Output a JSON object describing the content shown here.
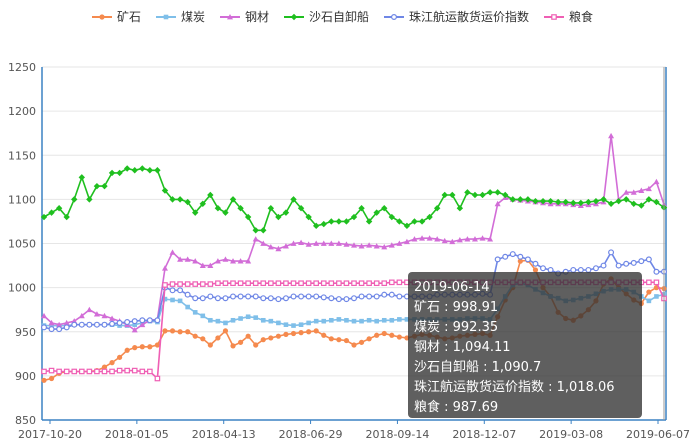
{
  "chart_data": {
    "type": "line",
    "title": "",
    "xlabel": "",
    "ylabel": "",
    "ylim": [
      850,
      1250
    ],
    "yticks": [
      850,
      900,
      950,
      1000,
      1050,
      1100,
      1150,
      1200,
      1250
    ],
    "x_tick_labels": [
      "2017-10-20",
      "2018-01-05",
      "2018-04-13",
      "2018-06-29",
      "2018-09-14",
      "2018-12-07",
      "2019-03-08",
      "2019-06-07"
    ],
    "legend": {
      "position": "top"
    },
    "grid": {
      "horizontal": true,
      "vertical": false
    },
    "series": [
      {
        "name": "矿石",
        "color": "#f58a4e",
        "marker": "circle",
        "values": [
          895,
          897,
          903,
          905,
          905,
          905,
          905,
          906,
          910,
          915,
          921,
          929,
          932,
          933,
          933,
          935,
          951,
          951,
          950,
          950,
          945,
          942,
          935,
          943,
          951,
          934,
          938,
          945,
          935,
          941,
          943,
          945,
          947,
          948,
          949,
          950,
          951,
          946,
          942,
          941,
          940,
          935,
          938,
          942,
          946,
          948,
          946,
          944,
          943,
          945,
          947,
          946,
          944,
          942,
          943,
          945,
          946,
          947,
          948,
          946,
          967,
          986,
          1000,
          1030,
          1031,
          1020,
          1000,
          990,
          972,
          965,
          963,
          968,
          975,
          985,
          1004,
          1010,
          1000,
          993,
          986,
          982,
          995,
          1000,
          998.91
        ]
      },
      {
        "name": "煤炭",
        "color": "#7fbfe9",
        "marker": "square",
        "values": [
          957,
          957,
          957,
          957,
          958,
          958,
          958,
          958,
          958,
          958,
          957,
          957,
          958,
          960,
          962,
          961,
          987,
          986,
          985,
          978,
          972,
          968,
          963,
          962,
          960,
          963,
          965,
          967,
          966,
          963,
          962,
          960,
          958,
          957,
          958,
          960,
          962,
          962,
          963,
          964,
          963,
          962,
          962,
          963,
          962,
          963,
          963,
          964,
          964,
          964,
          964,
          964,
          964,
          964,
          964,
          964,
          965,
          965,
          965,
          964,
          976,
          990,
          1003,
          1005,
          1003,
          998,
          994,
          990,
          988,
          985,
          986,
          988,
          990,
          993,
          996,
          998,
          998,
          998,
          995,
          990,
          985,
          990,
          992.35
        ]
      },
      {
        "name": "钢材",
        "color": "#d26dd7",
        "marker": "triangle",
        "values": [
          968,
          960,
          958,
          960,
          962,
          968,
          975,
          970,
          968,
          965,
          962,
          958,
          952,
          958,
          963,
          964,
          1022,
          1040,
          1032,
          1032,
          1030,
          1025,
          1025,
          1030,
          1032,
          1030,
          1030,
          1030,
          1055,
          1050,
          1046,
          1044,
          1047,
          1050,
          1051,
          1049,
          1050,
          1050,
          1050,
          1050,
          1049,
          1048,
          1047,
          1048,
          1047,
          1046,
          1048,
          1050,
          1052,
          1055,
          1056,
          1056,
          1055,
          1053,
          1052,
          1054,
          1055,
          1055,
          1056,
          1055,
          1095,
          1102,
          1100,
          1099,
          1098,
          1097,
          1096,
          1095,
          1095,
          1095,
          1094,
          1093,
          1094,
          1095,
          1097,
          1172,
          1100,
          1108,
          1108,
          1110,
          1112,
          1120,
          1094.11
        ]
      },
      {
        "name": "沙石自卸船",
        "color": "#1fbf1f",
        "marker": "diamond",
        "values": [
          1080,
          1085,
          1090,
          1080,
          1100,
          1125,
          1100,
          1115,
          1115,
          1130,
          1130,
          1135,
          1133,
          1135,
          1133,
          1133,
          1110,
          1100,
          1100,
          1097,
          1085,
          1095,
          1105,
          1090,
          1085,
          1100,
          1090,
          1080,
          1065,
          1065,
          1090,
          1080,
          1085,
          1100,
          1090,
          1080,
          1070,
          1072,
          1075,
          1075,
          1075,
          1080,
          1090,
          1075,
          1085,
          1090,
          1080,
          1075,
          1070,
          1075,
          1075,
          1080,
          1090,
          1105,
          1105,
          1090,
          1108,
          1105,
          1105,
          1108,
          1108,
          1105,
          1100,
          1100,
          1100,
          1098,
          1098,
          1098,
          1097,
          1097,
          1096,
          1096,
          1097,
          1098,
          1100,
          1095,
          1098,
          1100,
          1095,
          1093,
          1100,
          1097,
          1090.7
        ]
      },
      {
        "name": "珠江航运散货运价指数",
        "color": "#6f87e6",
        "marker": "ring",
        "values": [
          955,
          953,
          953,
          955,
          958,
          958,
          958,
          958,
          958,
          959,
          960,
          961,
          962,
          963,
          963,
          963,
          1000,
          997,
          997,
          992,
          988,
          988,
          990,
          988,
          988,
          990,
          990,
          990,
          990,
          988,
          988,
          987,
          988,
          990,
          990,
          990,
          990,
          989,
          988,
          987,
          987,
          988,
          990,
          990,
          990,
          992,
          992,
          990,
          990,
          990,
          990,
          990,
          992,
          992,
          992,
          992,
          992,
          992,
          993,
          992,
          1032,
          1035,
          1038,
          1035,
          1032,
          1027,
          1022,
          1020,
          1016,
          1018,
          1020,
          1020,
          1020,
          1022,
          1025,
          1040,
          1025,
          1027,
          1028,
          1030,
          1032,
          1018,
          1018.06
        ]
      },
      {
        "name": "粮食",
        "color": "#ef5fb4",
        "marker": "square-outline",
        "values": [
          905,
          906,
          905,
          905,
          905,
          905,
          905,
          905,
          905,
          905,
          906,
          906,
          906,
          905,
          905,
          897,
          1003,
          1004,
          1004,
          1004,
          1004,
          1004,
          1004,
          1005,
          1005,
          1005,
          1005,
          1005,
          1005,
          1005,
          1005,
          1005,
          1005,
          1005,
          1005,
          1005,
          1005,
          1005,
          1005,
          1005,
          1005,
          1005,
          1005,
          1005,
          1005,
          1005,
          1006,
          1006,
          1006,
          1006,
          1006,
          1006,
          1006,
          1006,
          1006,
          1006,
          1006,
          1006,
          1006,
          1006,
          1006,
          1006,
          1006,
          1006,
          1006,
          1006,
          1006,
          1006,
          1006,
          1006,
          1006,
          1006,
          1006,
          1006,
          1006,
          1006,
          1006,
          1006,
          1006,
          1006,
          1006,
          1006,
          987.69
        ]
      }
    ]
  },
  "tooltip": {
    "date": "2019-06-14",
    "rows": [
      "矿石 : 998.91",
      "煤炭 : 992.35",
      "钢材 : 1,094.11",
      "沙石自卸船 : 1,090.7",
      "珠江航运散货运价指数 : 1,018.06",
      "粮食 : 987.69"
    ]
  }
}
